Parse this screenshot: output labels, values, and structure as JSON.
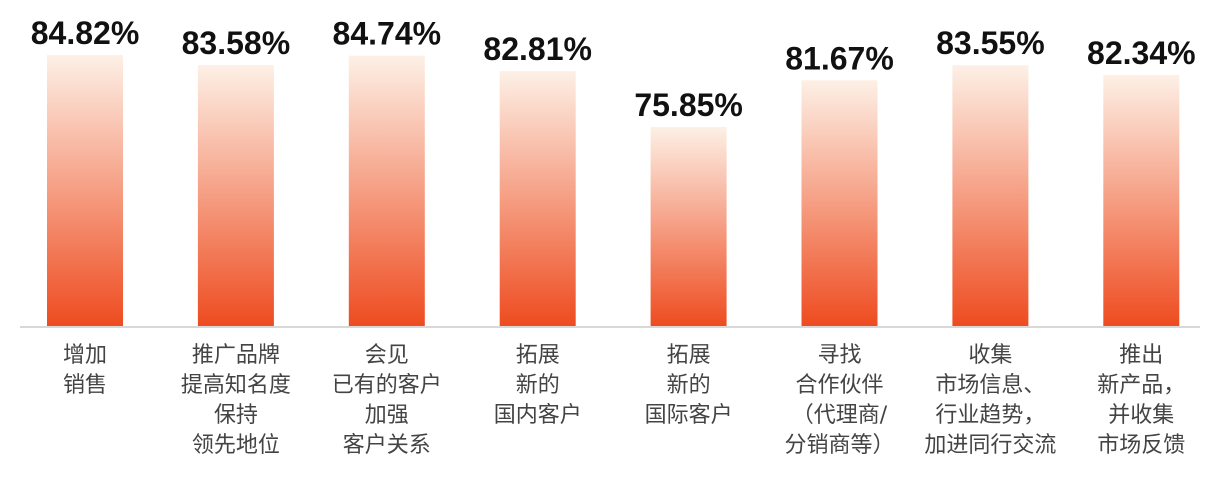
{
  "chart_data": {
    "type": "bar",
    "categories": [
      [
        "增加",
        "销售"
      ],
      [
        "推广品牌",
        "提高知名度",
        "保持",
        "领先地位"
      ],
      [
        "会见",
        "已有的客户",
        "加强",
        "客户关系"
      ],
      [
        "拓展",
        "新的",
        "国内客户"
      ],
      [
        "拓展",
        "新的",
        "国际客户"
      ],
      [
        "寻找",
        "合作伙伴",
        "（代理商/",
        "分销商等）"
      ],
      [
        "收集",
        "市场信息、",
        "行业趋势，",
        "加进同行交流"
      ],
      [
        "推出",
        "新产品，",
        "并收集",
        "市场反馈"
      ]
    ],
    "values": [
      84.82,
      83.58,
      84.74,
      82.81,
      75.85,
      81.67,
      83.55,
      82.34
    ],
    "value_labels": [
      "84.82%",
      "83.58%",
      "84.74%",
      "82.81%",
      "75.85%",
      "81.67%",
      "83.55%",
      "82.34%"
    ],
    "unit": "%",
    "ylim": [
      0,
      100
    ],
    "grid": false,
    "legend": "none"
  },
  "colors": {
    "bar_top": "#fdf0e6",
    "bar_bottom": "#ee4b1f",
    "baseline": "#d8d8d8"
  }
}
